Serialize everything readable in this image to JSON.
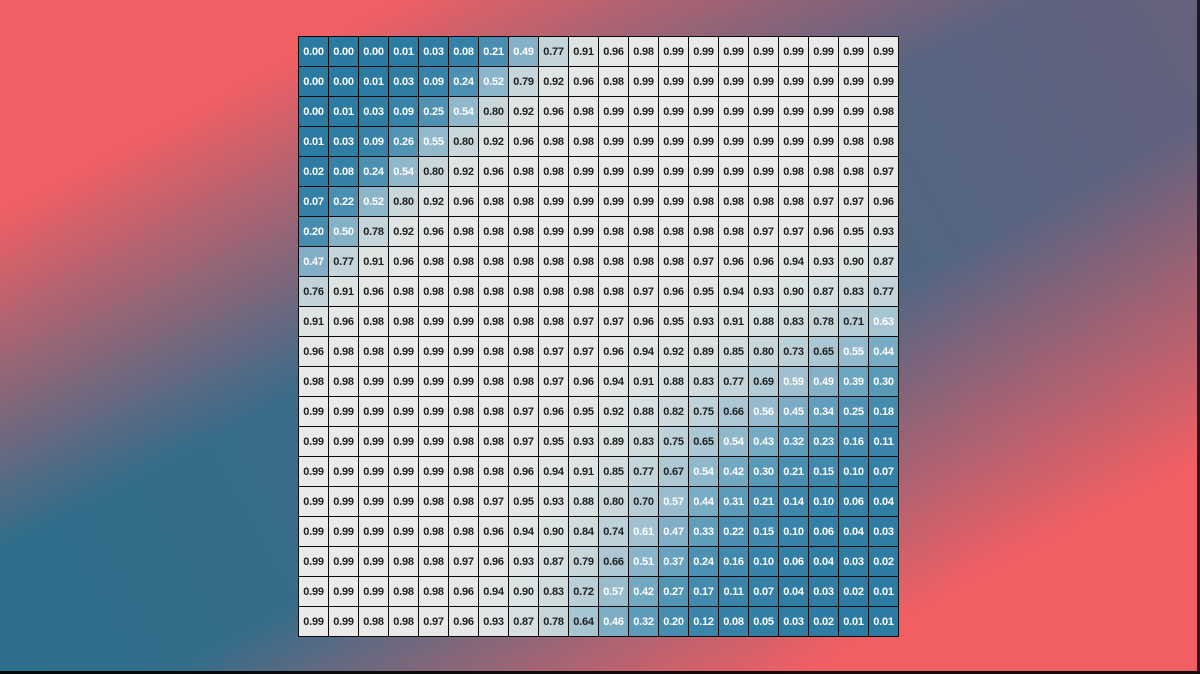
{
  "chart_data": {
    "type": "heatmap",
    "title": "",
    "xlabel": "",
    "ylabel": "",
    "rows": 20,
    "cols": 20,
    "value_format_decimals": 2,
    "axes_visible": false,
    "grid_line_color": "#0a0a0a",
    "text_color_dark": "#1f1f1f",
    "text_color_light": "#ffffff",
    "text_dark_threshold": 0.64,
    "colormap_stops": [
      [
        0.0,
        "#2b7aa1"
      ],
      [
        0.1,
        "#3883a9"
      ],
      [
        0.25,
        "#4f92b3"
      ],
      [
        0.4,
        "#6ea6c1"
      ],
      [
        0.5,
        "#86b2c8"
      ],
      [
        0.6,
        "#9fc0d0"
      ],
      [
        0.7,
        "#b6cdd6"
      ],
      [
        0.8,
        "#c9d7db"
      ],
      [
        0.9,
        "#dce3e3"
      ],
      [
        1.0,
        "#ebebe9"
      ]
    ],
    "values": [
      [
        0.0,
        0.0,
        0.0,
        0.01,
        0.03,
        0.08,
        0.21,
        0.49,
        0.77,
        0.91,
        0.96,
        0.98,
        0.99,
        0.99,
        0.99,
        0.99,
        0.99,
        0.99,
        0.99,
        0.99
      ],
      [
        0.0,
        0.0,
        0.01,
        0.03,
        0.09,
        0.24,
        0.52,
        0.79,
        0.92,
        0.96,
        0.98,
        0.99,
        0.99,
        0.99,
        0.99,
        0.99,
        0.99,
        0.99,
        0.99,
        0.99
      ],
      [
        0.0,
        0.01,
        0.03,
        0.09,
        0.25,
        0.54,
        0.8,
        0.92,
        0.96,
        0.98,
        0.99,
        0.99,
        0.99,
        0.99,
        0.99,
        0.99,
        0.99,
        0.99,
        0.99,
        0.98
      ],
      [
        0.01,
        0.03,
        0.09,
        0.26,
        0.55,
        0.8,
        0.92,
        0.96,
        0.98,
        0.98,
        0.99,
        0.99,
        0.99,
        0.99,
        0.99,
        0.99,
        0.99,
        0.99,
        0.98,
        0.98
      ],
      [
        0.02,
        0.08,
        0.24,
        0.54,
        0.8,
        0.92,
        0.96,
        0.98,
        0.98,
        0.99,
        0.99,
        0.99,
        0.99,
        0.99,
        0.99,
        0.99,
        0.98,
        0.98,
        0.98,
        0.97
      ],
      [
        0.07,
        0.22,
        0.52,
        0.8,
        0.92,
        0.96,
        0.98,
        0.98,
        0.99,
        0.99,
        0.99,
        0.99,
        0.99,
        0.98,
        0.98,
        0.98,
        0.98,
        0.97,
        0.97,
        0.96
      ],
      [
        0.2,
        0.5,
        0.78,
        0.92,
        0.96,
        0.98,
        0.98,
        0.98,
        0.99,
        0.99,
        0.98,
        0.98,
        0.98,
        0.98,
        0.98,
        0.97,
        0.97,
        0.96,
        0.95,
        0.93
      ],
      [
        0.47,
        0.77,
        0.91,
        0.96,
        0.98,
        0.98,
        0.98,
        0.98,
        0.98,
        0.98,
        0.98,
        0.98,
        0.98,
        0.97,
        0.96,
        0.96,
        0.94,
        0.93,
        0.9,
        0.87
      ],
      [
        0.76,
        0.91,
        0.96,
        0.98,
        0.98,
        0.98,
        0.98,
        0.98,
        0.98,
        0.98,
        0.98,
        0.97,
        0.96,
        0.95,
        0.94,
        0.93,
        0.9,
        0.87,
        0.83,
        0.77
      ],
      [
        0.91,
        0.96,
        0.98,
        0.98,
        0.99,
        0.99,
        0.98,
        0.98,
        0.98,
        0.97,
        0.97,
        0.96,
        0.95,
        0.93,
        0.91,
        0.88,
        0.83,
        0.78,
        0.71,
        0.63
      ],
      [
        0.96,
        0.98,
        0.98,
        0.99,
        0.99,
        0.99,
        0.98,
        0.98,
        0.97,
        0.97,
        0.96,
        0.94,
        0.92,
        0.89,
        0.85,
        0.8,
        0.73,
        0.65,
        0.55,
        0.44
      ],
      [
        0.98,
        0.98,
        0.99,
        0.99,
        0.99,
        0.99,
        0.98,
        0.98,
        0.97,
        0.96,
        0.94,
        0.91,
        0.88,
        0.83,
        0.77,
        0.69,
        0.59,
        0.49,
        0.39,
        0.3
      ],
      [
        0.99,
        0.99,
        0.99,
        0.99,
        0.99,
        0.98,
        0.98,
        0.97,
        0.96,
        0.95,
        0.92,
        0.88,
        0.82,
        0.75,
        0.66,
        0.56,
        0.45,
        0.34,
        0.25,
        0.18
      ],
      [
        0.99,
        0.99,
        0.99,
        0.99,
        0.99,
        0.98,
        0.98,
        0.97,
        0.95,
        0.93,
        0.89,
        0.83,
        0.75,
        0.65,
        0.54,
        0.43,
        0.32,
        0.23,
        0.16,
        0.11
      ],
      [
        0.99,
        0.99,
        0.99,
        0.99,
        0.99,
        0.98,
        0.98,
        0.96,
        0.94,
        0.91,
        0.85,
        0.77,
        0.67,
        0.54,
        0.42,
        0.3,
        0.21,
        0.15,
        0.1,
        0.07
      ],
      [
        0.99,
        0.99,
        0.99,
        0.99,
        0.98,
        0.98,
        0.97,
        0.95,
        0.93,
        0.88,
        0.8,
        0.7,
        0.57,
        0.44,
        0.31,
        0.21,
        0.14,
        0.1,
        0.06,
        0.04
      ],
      [
        0.99,
        0.99,
        0.99,
        0.99,
        0.98,
        0.98,
        0.96,
        0.94,
        0.9,
        0.84,
        0.74,
        0.61,
        0.47,
        0.33,
        0.22,
        0.15,
        0.1,
        0.06,
        0.04,
        0.03
      ],
      [
        0.99,
        0.99,
        0.99,
        0.98,
        0.98,
        0.97,
        0.96,
        0.93,
        0.87,
        0.79,
        0.66,
        0.51,
        0.37,
        0.24,
        0.16,
        0.1,
        0.06,
        0.04,
        0.03,
        0.02
      ],
      [
        0.99,
        0.99,
        0.99,
        0.98,
        0.98,
        0.96,
        0.94,
        0.9,
        0.83,
        0.72,
        0.57,
        0.42,
        0.27,
        0.17,
        0.11,
        0.07,
        0.04,
        0.03,
        0.02,
        0.01
      ],
      [
        0.99,
        0.99,
        0.98,
        0.98,
        0.97,
        0.96,
        0.93,
        0.87,
        0.78,
        0.64,
        0.46,
        0.32,
        0.2,
        0.12,
        0.08,
        0.05,
        0.03,
        0.02,
        0.01,
        0.01
      ]
    ]
  },
  "background": {
    "corner_top_left_color": "#f15f64",
    "corner_bottom_right_color": "#f25f63",
    "band_bottom_left_color": "#2c6e8b",
    "band_top_right_color": "#66617c",
    "edge_shadow_color": "#000000"
  }
}
